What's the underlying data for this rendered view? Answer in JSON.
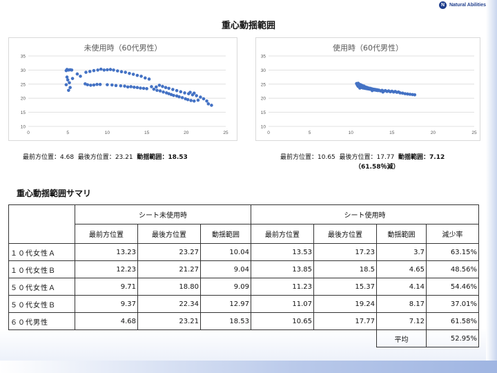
{
  "brand": {
    "logo_letter": "N",
    "name": "Natural Abilities"
  },
  "page_title": "重心動揺範囲",
  "chart_data": [
    {
      "type": "scatter",
      "title": "未使用時（60代男性）",
      "xlim": [
        0,
        25
      ],
      "ylim": [
        10,
        35
      ],
      "x_ticks": [
        "0",
        "5",
        "10",
        "15",
        "20",
        "25"
      ],
      "y_ticks": [
        "10",
        "15",
        "20",
        "25",
        "30",
        "35"
      ],
      "color": "#4472c4",
      "series": [
        {
          "points": [
            [
              4.8,
              29.8
            ],
            [
              4.9,
              30.2
            ],
            [
              5.1,
              30.0
            ],
            [
              5.3,
              30.1
            ],
            [
              5.5,
              30.0
            ],
            [
              4.9,
              27.5
            ],
            [
              5.0,
              26.5
            ],
            [
              5.2,
              25.5
            ],
            [
              4.8,
              24.8
            ],
            [
              5.3,
              23.8
            ],
            [
              5.1,
              22.8
            ],
            [
              5.6,
              27.0
            ],
            [
              6.2,
              28.6
            ],
            [
              6.6,
              27.8
            ],
            [
              7.3,
              29.2
            ],
            [
              7.8,
              29.5
            ],
            [
              8.3,
              29.8
            ],
            [
              8.8,
              30.0
            ],
            [
              9.2,
              30.3
            ],
            [
              9.6,
              30.0
            ],
            [
              10.0,
              30.1
            ],
            [
              10.4,
              30.2
            ],
            [
              10.8,
              30.0
            ],
            [
              11.3,
              29.7
            ],
            [
              11.8,
              29.4
            ],
            [
              12.3,
              29.2
            ],
            [
              12.8,
              28.8
            ],
            [
              13.3,
              28.5
            ],
            [
              13.8,
              28.1
            ],
            [
              14.3,
              27.8
            ],
            [
              14.8,
              27.2
            ],
            [
              15.3,
              26.8
            ],
            [
              7.2,
              25.1
            ],
            [
              7.5,
              24.8
            ],
            [
              7.9,
              24.6
            ],
            [
              8.3,
              24.7
            ],
            [
              8.7,
              24.9
            ],
            [
              9.1,
              24.9
            ],
            [
              10.0,
              24.8
            ],
            [
              10.6,
              24.7
            ],
            [
              11.1,
              24.5
            ],
            [
              11.7,
              24.4
            ],
            [
              12.2,
              24.3
            ],
            [
              12.6,
              24.0
            ],
            [
              13.0,
              24.1
            ],
            [
              13.4,
              23.9
            ],
            [
              13.8,
              23.8
            ],
            [
              14.2,
              23.6
            ],
            [
              14.6,
              23.5
            ],
            [
              15.0,
              23.4
            ],
            [
              15.6,
              24.1
            ],
            [
              15.9,
              23.2
            ],
            [
              16.3,
              22.8
            ],
            [
              16.7,
              22.6
            ],
            [
              17.1,
              22.2
            ],
            [
              17.5,
              21.9
            ],
            [
              17.8,
              21.6
            ],
            [
              18.1,
              21.3
            ],
            [
              18.4,
              21.0
            ],
            [
              18.8,
              20.8
            ],
            [
              19.1,
              20.5
            ],
            [
              19.5,
              20.2
            ],
            [
              19.9,
              19.8
            ],
            [
              20.2,
              19.5
            ],
            [
              20.6,
              19.2
            ],
            [
              21.0,
              19.0
            ],
            [
              16.2,
              24.0
            ],
            [
              16.6,
              24.6
            ],
            [
              17.0,
              24.2
            ],
            [
              17.4,
              23.8
            ],
            [
              17.8,
              23.5
            ],
            [
              18.3,
              23.1
            ],
            [
              18.8,
              22.7
            ],
            [
              19.3,
              22.3
            ],
            [
              19.8,
              21.9
            ],
            [
              20.3,
              21.6
            ],
            [
              20.8,
              21.2
            ],
            [
              21.3,
              20.9
            ],
            [
              21.8,
              20.4
            ],
            [
              22.2,
              19.8
            ],
            [
              22.6,
              19.0
            ],
            [
              23.2,
              17.5
            ],
            [
              22.8,
              18.0
            ],
            [
              21.5,
              19.3
            ],
            [
              21.0,
              21.8
            ],
            [
              20.5,
              22.1
            ]
          ]
        }
      ]
    },
    {
      "type": "scatter",
      "title": "使用時（60代男性）",
      "xlim": [
        0,
        25
      ],
      "ylim": [
        10,
        35
      ],
      "x_ticks": [
        "0",
        "5",
        "10",
        "15",
        "20",
        "25"
      ],
      "y_ticks": [
        "10",
        "15",
        "20",
        "25",
        "30",
        "35"
      ],
      "color": "#4472c4",
      "series": [
        {
          "points": [
            [
              10.7,
              25.2
            ],
            [
              10.8,
              24.6
            ],
            [
              10.9,
              24.2
            ],
            [
              11.0,
              25.0
            ],
            [
              11.1,
              24.0
            ],
            [
              11.2,
              24.8
            ],
            [
              11.3,
              23.8
            ],
            [
              11.4,
              24.5
            ],
            [
              11.5,
              23.6
            ],
            [
              11.6,
              24.3
            ],
            [
              11.7,
              23.5
            ],
            [
              11.8,
              24.0
            ],
            [
              11.9,
              23.4
            ],
            [
              12.0,
              23.8
            ],
            [
              12.1,
              23.3
            ],
            [
              12.2,
              23.6
            ],
            [
              12.3,
              23.2
            ],
            [
              12.4,
              23.5
            ],
            [
              12.5,
              23.1
            ],
            [
              12.6,
              23.3
            ],
            [
              12.7,
              23.0
            ],
            [
              12.8,
              23.2
            ],
            [
              12.9,
              22.9
            ],
            [
              13.0,
              23.1
            ],
            [
              13.1,
              22.8
            ],
            [
              13.2,
              23.0
            ],
            [
              13.3,
              22.7
            ],
            [
              13.4,
              22.9
            ],
            [
              13.6,
              22.6
            ],
            [
              13.8,
              22.8
            ],
            [
              14.0,
              22.5
            ],
            [
              14.2,
              22.7
            ],
            [
              14.4,
              22.4
            ],
            [
              14.6,
              22.6
            ],
            [
              14.8,
              22.3
            ],
            [
              15.0,
              22.5
            ],
            [
              15.2,
              22.2
            ],
            [
              15.4,
              22.4
            ],
            [
              15.6,
              22.1
            ],
            [
              15.8,
              22.2
            ],
            [
              16.0,
              21.9
            ],
            [
              16.3,
              21.8
            ],
            [
              16.6,
              21.6
            ],
            [
              16.9,
              21.5
            ],
            [
              17.2,
              21.4
            ],
            [
              17.5,
              21.3
            ],
            [
              17.77,
              21.2
            ],
            [
              11.1,
              23.6
            ],
            [
              10.9,
              25.3
            ],
            [
              12.6,
              22.7
            ],
            [
              13.9,
              22.2
            ]
          ]
        }
      ]
    }
  ],
  "captions": [
    {
      "front_label": "最前方位置：",
      "front": "4.68",
      "back_label": "最後方位置：",
      "back": "23.21",
      "range_label": "動揺範囲：",
      "range": "18.53",
      "reduction": ""
    },
    {
      "front_label": "最前方位置：",
      "front": "10.65",
      "back_label": "最後方位置：",
      "back": "17.77",
      "range_label": "動揺範囲：",
      "range": "7.12",
      "reduction": "（61.58％減）"
    }
  ],
  "summary": {
    "title": "重心動揺範囲サマリ",
    "group_headers": [
      "シート未使用時",
      "シート使用時"
    ],
    "sub_headers": [
      "最前方位置",
      "最後方位置",
      "動揺範囲",
      "最前方位置",
      "最後方位置",
      "動揺範囲",
      "減少率"
    ],
    "rows": [
      {
        "label": "１０代女性Ａ",
        "cells": [
          "13.23",
          "23.27",
          "10.04",
          "13.53",
          "17.23",
          "3.7",
          "63.15%"
        ]
      },
      {
        "label": "１０代女性Ｂ",
        "cells": [
          "12.23",
          "21.27",
          "9.04",
          "13.85",
          "18.5",
          "4.65",
          "48.56%"
        ]
      },
      {
        "label": "５０代女性Ａ",
        "cells": [
          "9.71",
          "18.80",
          "9.09",
          "11.23",
          "15.37",
          "4.14",
          "54.46%"
        ]
      },
      {
        "label": "５０代女性Ｂ",
        "cells": [
          "9.37",
          "22.34",
          "12.97",
          "11.07",
          "19.24",
          "8.17",
          "37.01%"
        ]
      },
      {
        "label": "６０代男性",
        "cells": [
          "4.68",
          "23.21",
          "18.53",
          "10.65",
          "17.77",
          "7.12",
          "61.58%"
        ]
      }
    ],
    "average_label": "平均",
    "average_value": "52.95%"
  }
}
